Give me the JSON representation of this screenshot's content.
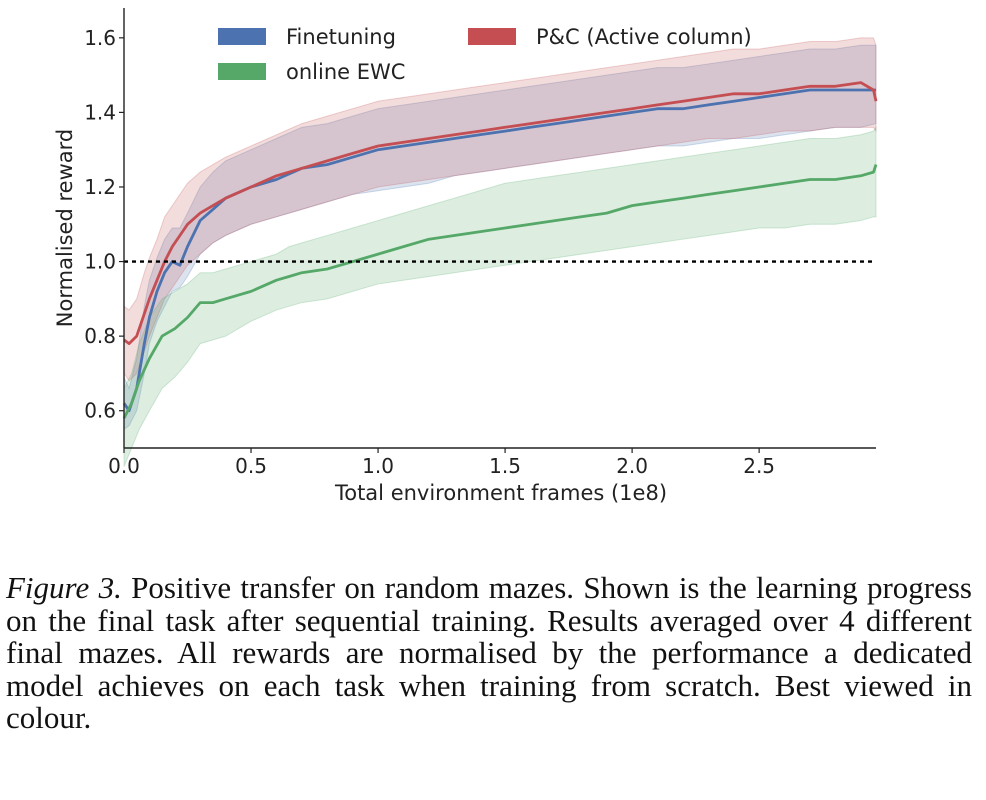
{
  "chart_data": {
    "type": "line",
    "xlabel": "Total environment frames (1e8)",
    "ylabel": "Normalised reward",
    "xlim": [
      0,
      2.96
    ],
    "ylim": [
      0.5,
      1.68
    ],
    "x_ticks": [
      "0.0",
      "0.5",
      "1.0",
      "1.5",
      "2.0",
      "2.5"
    ],
    "y_ticks": [
      "0.6",
      "0.8",
      "1.0",
      "1.2",
      "1.4",
      "1.6"
    ],
    "grid": false,
    "legend_placement": "top",
    "reference_line": {
      "y": 1.0,
      "style": "dotted",
      "color": "#000000"
    },
    "series": [
      {
        "name": "Finetuning",
        "color": "#4c72b0",
        "x": [
          0,
          0.02,
          0.05,
          0.08,
          0.1,
          0.13,
          0.16,
          0.19,
          0.22,
          0.25,
          0.3,
          0.35,
          0.4,
          0.5,
          0.6,
          0.7,
          0.8,
          0.9,
          1.0,
          1.1,
          1.2,
          1.3,
          1.4,
          1.5,
          1.6,
          1.7,
          1.8,
          1.9,
          2.0,
          2.1,
          2.2,
          2.3,
          2.4,
          2.5,
          2.6,
          2.7,
          2.8,
          2.9,
          2.96
        ],
        "values": [
          0.62,
          0.6,
          0.66,
          0.78,
          0.85,
          0.92,
          0.97,
          1.0,
          0.99,
          1.04,
          1.11,
          1.14,
          1.17,
          1.2,
          1.22,
          1.25,
          1.26,
          1.28,
          1.3,
          1.31,
          1.32,
          1.33,
          1.34,
          1.35,
          1.36,
          1.37,
          1.38,
          1.39,
          1.4,
          1.41,
          1.41,
          1.42,
          1.43,
          1.44,
          1.45,
          1.46,
          1.46,
          1.46,
          1.46
        ],
        "band_lower": [
          0.55,
          0.56,
          0.6,
          0.7,
          0.78,
          0.84,
          0.88,
          0.92,
          0.93,
          0.96,
          1.02,
          1.05,
          1.07,
          1.1,
          1.12,
          1.14,
          1.16,
          1.18,
          1.19,
          1.2,
          1.21,
          1.23,
          1.24,
          1.25,
          1.26,
          1.27,
          1.28,
          1.29,
          1.3,
          1.31,
          1.31,
          1.32,
          1.33,
          1.33,
          1.34,
          1.35,
          1.36,
          1.36,
          1.37
        ],
        "band_upper": [
          0.69,
          0.66,
          0.74,
          0.88,
          0.95,
          1.01,
          1.06,
          1.09,
          1.09,
          1.13,
          1.2,
          1.24,
          1.27,
          1.3,
          1.33,
          1.36,
          1.37,
          1.39,
          1.41,
          1.42,
          1.43,
          1.44,
          1.45,
          1.46,
          1.47,
          1.48,
          1.49,
          1.5,
          1.51,
          1.52,
          1.52,
          1.53,
          1.54,
          1.55,
          1.56,
          1.57,
          1.57,
          1.58,
          1.58
        ]
      },
      {
        "name": "P&C (Active column)",
        "color": "#c44e52",
        "x": [
          0,
          0.02,
          0.05,
          0.08,
          0.1,
          0.13,
          0.16,
          0.19,
          0.22,
          0.25,
          0.3,
          0.35,
          0.4,
          0.5,
          0.6,
          0.7,
          0.8,
          0.9,
          1.0,
          1.1,
          1.2,
          1.3,
          1.4,
          1.5,
          1.6,
          1.7,
          1.8,
          1.9,
          2.0,
          2.1,
          2.2,
          2.3,
          2.4,
          2.5,
          2.6,
          2.7,
          2.8,
          2.9,
          2.95,
          2.96
        ],
        "values": [
          0.79,
          0.78,
          0.8,
          0.86,
          0.9,
          0.95,
          1.0,
          1.04,
          1.07,
          1.1,
          1.13,
          1.15,
          1.17,
          1.2,
          1.23,
          1.25,
          1.27,
          1.29,
          1.31,
          1.32,
          1.33,
          1.34,
          1.35,
          1.36,
          1.37,
          1.38,
          1.39,
          1.4,
          1.41,
          1.42,
          1.43,
          1.44,
          1.45,
          1.45,
          1.46,
          1.47,
          1.47,
          1.48,
          1.46,
          1.43
        ],
        "band_lower": [
          0.7,
          0.68,
          0.7,
          0.76,
          0.8,
          0.85,
          0.9,
          0.93,
          0.96,
          0.99,
          1.02,
          1.05,
          1.07,
          1.1,
          1.12,
          1.14,
          1.16,
          1.18,
          1.2,
          1.21,
          1.22,
          1.23,
          1.24,
          1.25,
          1.26,
          1.27,
          1.28,
          1.29,
          1.3,
          1.31,
          1.32,
          1.33,
          1.33,
          1.34,
          1.35,
          1.35,
          1.36,
          1.36,
          1.36,
          1.35
        ],
        "band_upper": [
          0.88,
          0.87,
          0.9,
          0.97,
          1.01,
          1.06,
          1.12,
          1.15,
          1.18,
          1.21,
          1.24,
          1.26,
          1.28,
          1.31,
          1.34,
          1.37,
          1.39,
          1.41,
          1.43,
          1.44,
          1.45,
          1.46,
          1.47,
          1.48,
          1.49,
          1.5,
          1.51,
          1.52,
          1.53,
          1.54,
          1.55,
          1.56,
          1.57,
          1.57,
          1.58,
          1.59,
          1.59,
          1.6,
          1.6,
          1.58
        ]
      },
      {
        "name": "online EWC",
        "color": "#55a868",
        "x": [
          0,
          0.03,
          0.06,
          0.1,
          0.15,
          0.2,
          0.25,
          0.3,
          0.35,
          0.4,
          0.5,
          0.6,
          0.65,
          0.7,
          0.8,
          0.9,
          1.0,
          1.1,
          1.2,
          1.3,
          1.4,
          1.5,
          1.6,
          1.7,
          1.8,
          1.9,
          2.0,
          2.1,
          2.2,
          2.3,
          2.4,
          2.5,
          2.6,
          2.7,
          2.8,
          2.9,
          2.95,
          2.96
        ],
        "values": [
          0.58,
          0.62,
          0.68,
          0.74,
          0.8,
          0.82,
          0.85,
          0.89,
          0.89,
          0.9,
          0.92,
          0.95,
          0.96,
          0.97,
          0.98,
          1.0,
          1.02,
          1.04,
          1.06,
          1.07,
          1.08,
          1.09,
          1.1,
          1.11,
          1.12,
          1.13,
          1.15,
          1.16,
          1.17,
          1.18,
          1.19,
          1.2,
          1.21,
          1.22,
          1.22,
          1.23,
          1.24,
          1.26
        ],
        "band_lower": [
          0.45,
          0.5,
          0.55,
          0.6,
          0.66,
          0.69,
          0.73,
          0.78,
          0.79,
          0.8,
          0.84,
          0.87,
          0.88,
          0.89,
          0.9,
          0.92,
          0.94,
          0.95,
          0.96,
          0.97,
          0.98,
          0.99,
          1.0,
          1.01,
          1.02,
          1.03,
          1.04,
          1.05,
          1.06,
          1.07,
          1.08,
          1.09,
          1.09,
          1.1,
          1.1,
          1.11,
          1.12,
          1.12
        ],
        "band_upper": [
          0.66,
          0.7,
          0.78,
          0.85,
          0.9,
          0.92,
          0.94,
          0.97,
          0.97,
          0.98,
          1.0,
          1.02,
          1.04,
          1.05,
          1.07,
          1.09,
          1.11,
          1.13,
          1.15,
          1.17,
          1.19,
          1.21,
          1.22,
          1.23,
          1.24,
          1.25,
          1.26,
          1.27,
          1.28,
          1.29,
          1.3,
          1.31,
          1.32,
          1.33,
          1.33,
          1.34,
          1.35,
          1.36
        ]
      }
    ]
  },
  "caption": {
    "lead": "Figure 3.",
    "text": " Positive transfer on random mazes. Shown is the learning progress on the final task after sequential training. Results averaged over 4 different final mazes. All rewards are normalised by the performance a dedicated model achieves on each task when training from scratch. Best viewed in colour."
  }
}
